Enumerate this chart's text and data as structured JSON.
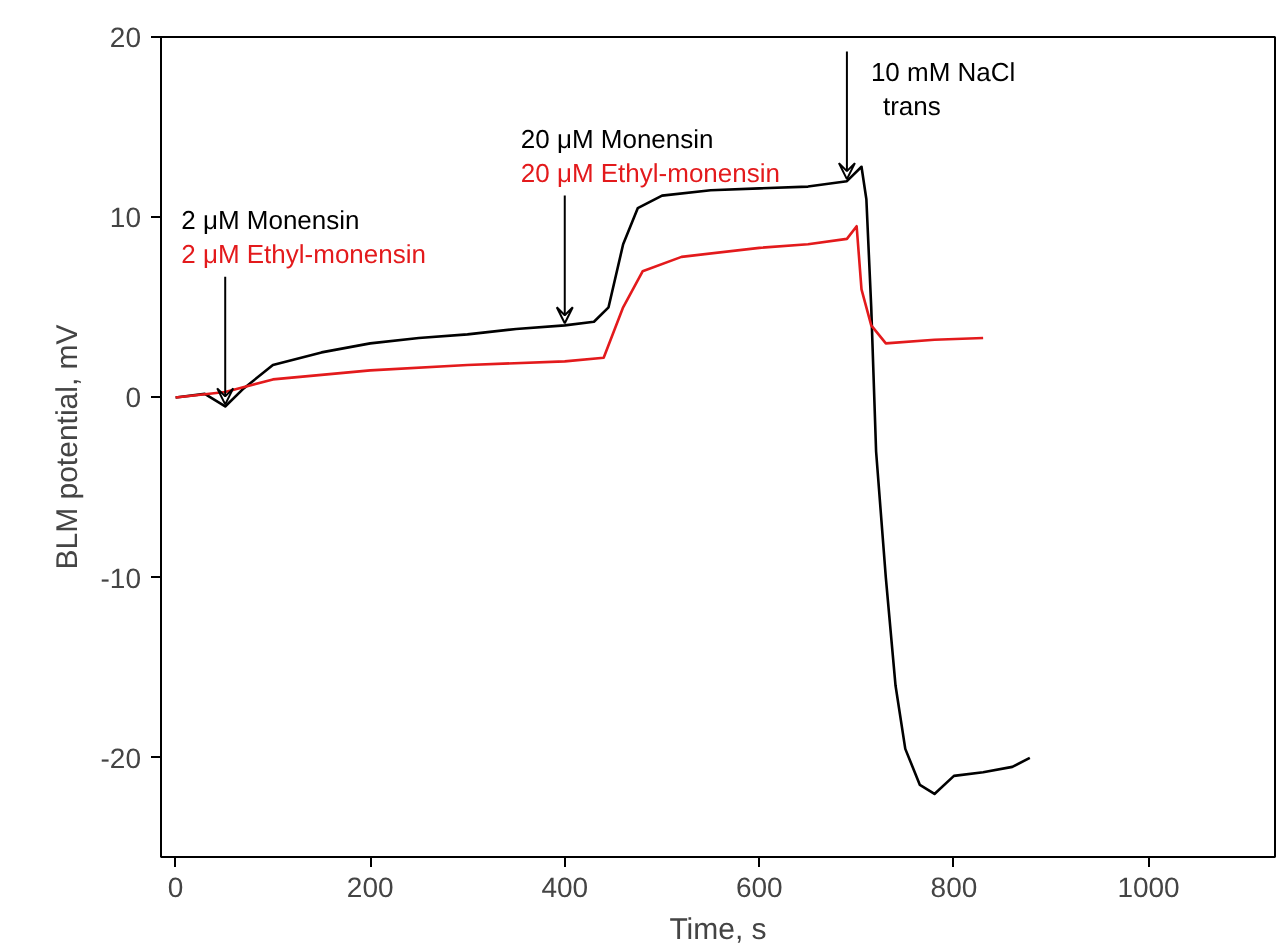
{
  "chart_data": {
    "type": "line",
    "xlabel": "Time, s",
    "ylabel": "BLM potential, mV",
    "xlim": [
      -15,
      1130
    ],
    "ylim": [
      -25.5,
      20
    ],
    "xticks": [
      0,
      200,
      400,
      600,
      800,
      1000
    ],
    "yticks": [
      -20,
      -10,
      0,
      10,
      20
    ],
    "grid": false,
    "marker": "none",
    "line_style": "solid",
    "series": [
      {
        "color": "#000000",
        "x": [
          0,
          30,
          51,
          70,
          100,
          150,
          200,
          250,
          300,
          350,
          400,
          430,
          445,
          460,
          475,
          500,
          550,
          600,
          650,
          690,
          705,
          710,
          715,
          720,
          730,
          740,
          750,
          765,
          780,
          800,
          830,
          860,
          878
        ],
        "values": [
          0,
          0.2,
          -0.5,
          0.5,
          1.8,
          2.5,
          3,
          3.3,
          3.5,
          3.8,
          4,
          4.2,
          5,
          8.5,
          10.5,
          11.2,
          11.5,
          11.6,
          11.7,
          12,
          12.8,
          11,
          5,
          -3,
          -10,
          -16,
          -19.5,
          -21.5,
          -22,
          -21,
          -20.8,
          -20.5,
          -20
        ]
      },
      {
        "color": "#e31a1c",
        "x": [
          0,
          51,
          100,
          200,
          300,
          400,
          440,
          460,
          480,
          520,
          600,
          650,
          690,
          700,
          705,
          715,
          730,
          780,
          830
        ],
        "values": [
          0,
          0.3,
          1,
          1.5,
          1.8,
          2,
          2.2,
          5,
          7,
          7.8,
          8.3,
          8.5,
          8.8,
          9.5,
          6,
          4,
          3,
          3.2,
          3.3
        ]
      }
    ],
    "annotations": [
      {
        "text": "2 μM Monensin\n2 μM Ethyl-monensin",
        "x": 51,
        "y": -0.5
      },
      {
        "text": "20 μM Monensin\n20 μM Ethyl-monensin",
        "x": 400,
        "y": 4
      },
      {
        "text": "10 mM NaCl trans",
        "x": 690,
        "y": 12
      }
    ]
  }
}
